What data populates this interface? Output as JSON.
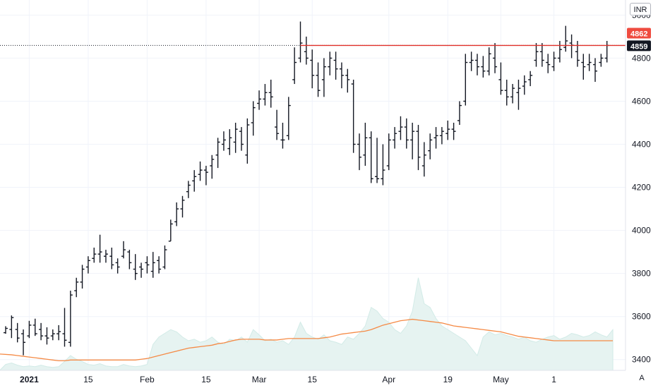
{
  "currency": "INR",
  "auto_label": "A",
  "colors": {
    "bar": "#131722",
    "volume_fill": "#e6f3f1",
    "volume_stroke": "#d2ebe7",
    "ma_line": "#f58a45",
    "price_line": "#e0302a",
    "last_badge": "#131722",
    "price_badge": "#ef4b3f",
    "grid": "#f0f3fa"
  },
  "chart_data": {
    "type": "ohlc",
    "y_ticks": [
      "5000",
      "4800",
      "4600",
      "4400",
      "4200",
      "4000",
      "3800",
      "3600",
      "3400"
    ],
    "x_ticks": [
      {
        "label": "2021",
        "bold": true,
        "index": 4
      },
      {
        "label": "15",
        "index": 14
      },
      {
        "label": "Feb",
        "index": 24
      },
      {
        "label": "15",
        "index": 34
      },
      {
        "label": "Mar",
        "index": 43
      },
      {
        "label": "15",
        "index": 52
      },
      {
        "label": "Apr",
        "index": 65
      },
      {
        "label": "19",
        "index": 75
      },
      {
        "label": "May",
        "index": 84
      },
      {
        "label": "1",
        "index": 93
      }
    ],
    "ylim": [
      3350,
      5070
    ],
    "price_badges": [
      {
        "label": "4862",
        "value": 4862,
        "kind": "price"
      },
      {
        "label": "4859",
        "value": 4859,
        "kind": "last"
      }
    ],
    "bars": [
      [
        3525,
        3555,
        3520,
        3545
      ],
      [
        3540,
        3605,
        3500,
        3595
      ],
      [
        3540,
        3570,
        3480,
        3500
      ],
      [
        3520,
        3540,
        3420,
        3480
      ],
      [
        3510,
        3580,
        3500,
        3560
      ],
      [
        3560,
        3590,
        3510,
        3520
      ],
      [
        3540,
        3570,
        3490,
        3510
      ],
      [
        3510,
        3550,
        3470,
        3500
      ],
      [
        3510,
        3540,
        3490,
        3520
      ],
      [
        3520,
        3560,
        3490,
        3530
      ],
      [
        3520,
        3640,
        3460,
        3490
      ],
      [
        3480,
        3720,
        3460,
        3700
      ],
      [
        3720,
        3780,
        3690,
        3760
      ],
      [
        3760,
        3840,
        3730,
        3820
      ],
      [
        3830,
        3880,
        3800,
        3860
      ],
      [
        3870,
        3920,
        3850,
        3890
      ],
      [
        3890,
        3980,
        3850,
        3900
      ],
      [
        3880,
        3910,
        3850,
        3890
      ],
      [
        3880,
        3920,
        3820,
        3840
      ],
      [
        3850,
        3870,
        3800,
        3830
      ],
      [
        3880,
        3950,
        3870,
        3910
      ],
      [
        3900,
        3910,
        3820,
        3850
      ],
      [
        3820,
        3890,
        3770,
        3800
      ],
      [
        3830,
        3850,
        3780,
        3820
      ],
      [
        3850,
        3880,
        3800,
        3840
      ],
      [
        3810,
        3900,
        3780,
        3850
      ],
      [
        3860,
        3880,
        3800,
        3820
      ],
      [
        3830,
        3930,
        3820,
        3910
      ],
      [
        3950,
        4050,
        3950,
        4030
      ],
      [
        4040,
        4130,
        4020,
        4100
      ],
      [
        4100,
        4160,
        4060,
        4140
      ],
      [
        4180,
        4230,
        4150,
        4210
      ],
      [
        4230,
        4280,
        4180,
        4250
      ],
      [
        4260,
        4320,
        4230,
        4280
      ],
      [
        4280,
        4300,
        4210,
        4270
      ],
      [
        4300,
        4350,
        4240,
        4330
      ],
      [
        4350,
        4430,
        4290,
        4410
      ],
      [
        4400,
        4460,
        4370,
        4420
      ],
      [
        4380,
        4470,
        4350,
        4430
      ],
      [
        4410,
        4500,
        4360,
        4470
      ],
      [
        4460,
        4480,
        4370,
        4400
      ],
      [
        4350,
        4520,
        4310,
        4490
      ],
      [
        4500,
        4600,
        4440,
        4570
      ],
      [
        4590,
        4650,
        4560,
        4610
      ],
      [
        4610,
        4680,
        4580,
        4640
      ],
      [
        4640,
        4700,
        4570,
        4620
      ],
      [
        4480,
        4560,
        4420,
        4450
      ],
      [
        4420,
        4500,
        4380,
        4420
      ],
      [
        4440,
        4620,
        4420,
        4580
      ],
      [
        4700,
        4850,
        4680,
        4780
      ],
      [
        4800,
        4970,
        4780,
        4870
      ],
      [
        4830,
        4900,
        4770,
        4800
      ],
      [
        4790,
        4840,
        4660,
        4720
      ],
      [
        4720,
        4780,
        4620,
        4650
      ],
      [
        4700,
        4800,
        4620,
        4760
      ],
      [
        4760,
        4830,
        4720,
        4800
      ],
      [
        4790,
        4830,
        4700,
        4750
      ],
      [
        4750,
        4780,
        4660,
        4720
      ],
      [
        4720,
        4750,
        4640,
        4700
      ],
      [
        4680,
        4700,
        4360,
        4400
      ],
      [
        4400,
        4450,
        4280,
        4340
      ],
      [
        4350,
        4500,
        4300,
        4430
      ],
      [
        4430,
        4460,
        4220,
        4240
      ],
      [
        4250,
        4430,
        4220,
        4240
      ],
      [
        4240,
        4400,
        4210,
        4280
      ],
      [
        4300,
        4450,
        4280,
        4420
      ],
      [
        4420,
        4480,
        4380,
        4450
      ],
      [
        4460,
        4530,
        4420,
        4480
      ],
      [
        4480,
        4520,
        4380,
        4420
      ],
      [
        4420,
        4500,
        4330,
        4460
      ],
      [
        4460,
        4490,
        4280,
        4340
      ],
      [
        4300,
        4410,
        4250,
        4350
      ],
      [
        4370,
        4450,
        4330,
        4420
      ],
      [
        4430,
        4480,
        4380,
        4440
      ],
      [
        4440,
        4480,
        4400,
        4460
      ],
      [
        4450,
        4510,
        4420,
        4470
      ],
      [
        4470,
        4500,
        4420,
        4460
      ],
      [
        4510,
        4600,
        4490,
        4580
      ],
      [
        4600,
        4820,
        4580,
        4780
      ],
      [
        4780,
        4830,
        4740,
        4790
      ],
      [
        4790,
        4820,
        4720,
        4760
      ],
      [
        4760,
        4810,
        4710,
        4740
      ],
      [
        4740,
        4850,
        4720,
        4820
      ],
      [
        4800,
        4870,
        4730,
        4760
      ],
      [
        4700,
        4780,
        4630,
        4650
      ],
      [
        4650,
        4700,
        4580,
        4620
      ],
      [
        4620,
        4680,
        4590,
        4660
      ],
      [
        4640,
        4700,
        4560,
        4660
      ],
      [
        4670,
        4720,
        4630,
        4690
      ],
      [
        4700,
        4740,
        4670,
        4720
      ],
      [
        4790,
        4870,
        4760,
        4830
      ],
      [
        4830,
        4870,
        4760,
        4790
      ],
      [
        4780,
        4820,
        4730,
        4770
      ],
      [
        4760,
        4830,
        4740,
        4800
      ],
      [
        4800,
        4880,
        4780,
        4840
      ],
      [
        4850,
        4950,
        4830,
        4880
      ],
      [
        4870,
        4910,
        4800,
        4860
      ],
      [
        4830,
        4880,
        4760,
        4790
      ],
      [
        4780,
        4820,
        4700,
        4760
      ],
      [
        4770,
        4820,
        4740,
        4780
      ],
      [
        4770,
        4800,
        4690,
        4740
      ],
      [
        4780,
        4820,
        4760,
        4800
      ],
      [
        4800,
        4880,
        4780,
        4859
      ]
    ],
    "volume": [
      0.08,
      0.1,
      0.07,
      0.05,
      0.06,
      0.05,
      0.07,
      0.05,
      0.04,
      0.05,
      0.12,
      0.2,
      0.15,
      0.12,
      0.08,
      0.07,
      0.09,
      0.06,
      0.05,
      0.05,
      0.08,
      0.06,
      0.05,
      0.06,
      0.08,
      0.35,
      0.45,
      0.5,
      0.55,
      0.52,
      0.45,
      0.4,
      0.42,
      0.38,
      0.4,
      0.45,
      0.38,
      0.35,
      0.42,
      0.4,
      0.45,
      0.38,
      0.55,
      0.48,
      0.4,
      0.42,
      0.38,
      0.4,
      0.35,
      0.45,
      0.65,
      0.5,
      0.45,
      0.42,
      0.48,
      0.4,
      0.38,
      0.35,
      0.45,
      0.42,
      0.5,
      0.6,
      0.85,
      0.8,
      0.7,
      0.65,
      0.55,
      0.5,
      0.6,
      0.8,
      1.25,
      0.9,
      0.85,
      0.7,
      0.6,
      0.55,
      0.5,
      0.45,
      0.4,
      0.3,
      0.2,
      0.45,
      0.52,
      0.48,
      0.5,
      0.47,
      0.45,
      0.42,
      0.45,
      0.4,
      0.38,
      0.42,
      0.45,
      0.47,
      0.42,
      0.45,
      0.5,
      0.48,
      0.45,
      0.47,
      0.52,
      0.48,
      0.45,
      0.55
    ],
    "ma": [
      0.22,
      0.21,
      0.2,
      0.19,
      0.18,
      0.17,
      0.16,
      0.15,
      0.14,
      0.13,
      0.13,
      0.14,
      0.14,
      0.14,
      0.14,
      0.14,
      0.14,
      0.14,
      0.14,
      0.14,
      0.14,
      0.14,
      0.14,
      0.15,
      0.16,
      0.18,
      0.2,
      0.22,
      0.24,
      0.26,
      0.28,
      0.3,
      0.31,
      0.32,
      0.33,
      0.34,
      0.36,
      0.37,
      0.39,
      0.41,
      0.42,
      0.42,
      0.42,
      0.42,
      0.41,
      0.41,
      0.41,
      0.42,
      0.43,
      0.43,
      0.43,
      0.43,
      0.43,
      0.43,
      0.44,
      0.45,
      0.47,
      0.49,
      0.5,
      0.51,
      0.52,
      0.53,
      0.55,
      0.58,
      0.61,
      0.63,
      0.65,
      0.67,
      0.68,
      0.69,
      0.68,
      0.67,
      0.66,
      0.65,
      0.64,
      0.62,
      0.6,
      0.59,
      0.58,
      0.57,
      0.56,
      0.55,
      0.54,
      0.53,
      0.52,
      0.5,
      0.48,
      0.46,
      0.45,
      0.44,
      0.43,
      0.42,
      0.41,
      0.4,
      0.4,
      0.4,
      0.4,
      0.4,
      0.4,
      0.4,
      0.4,
      0.4,
      0.4,
      0.4
    ]
  }
}
